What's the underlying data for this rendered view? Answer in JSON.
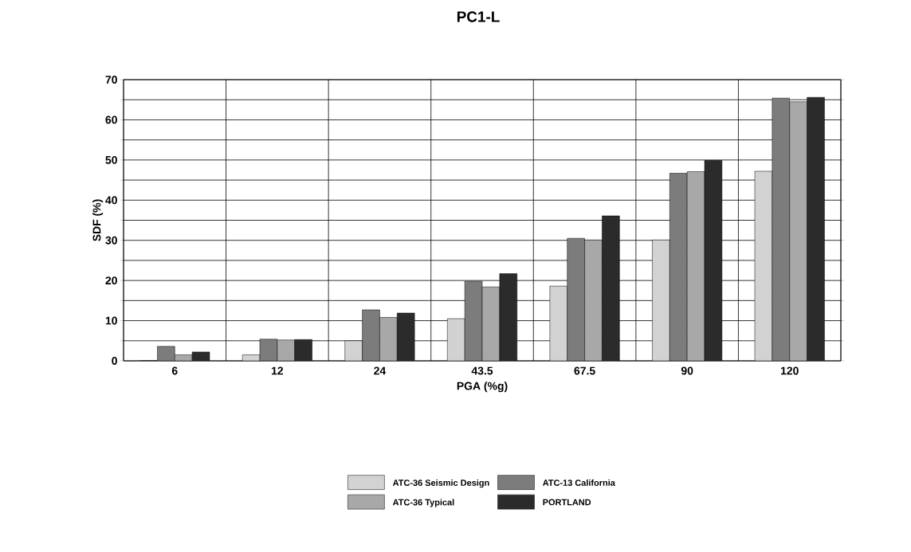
{
  "chart_data": {
    "type": "bar",
    "title": "PC1-L",
    "xlabel": "PGA (%g)",
    "ylabel": "SDF (%)",
    "categories": [
      "6",
      "12",
      "24",
      "43.5",
      "67.5",
      "90",
      "120"
    ],
    "series": [
      {
        "name": "ATC-36 Seismic Design",
        "color": "#d2d2d2",
        "values": [
          0,
          1.5,
          5,
          10.5,
          18.6,
          30.1,
          47.2
        ]
      },
      {
        "name": "ATC-13 California",
        "color": "#7c7c7c",
        "values": [
          3.6,
          5.4,
          12.7,
          19.8,
          30.5,
          46.7,
          65.4
        ]
      },
      {
        "name": "ATC-36 Typical",
        "color": "#a8a8a8",
        "values": [
          1.5,
          5.2,
          10.8,
          18.4,
          30.1,
          47.1,
          64.5
        ]
      },
      {
        "name": "PORTLAND",
        "color": "#2b2b2b",
        "values": [
          2.2,
          5.3,
          11.9,
          21.7,
          36.1,
          49.9,
          65.6
        ]
      }
    ],
    "ylim": [
      0,
      70
    ],
    "yticks": [
      0,
      {
        "value": 5,
        "label": null
      },
      10,
      {
        "value": 15,
        "label": null
      },
      20,
      {
        "value": 25,
        "label": null
      },
      30,
      {
        "value": 35,
        "label": null
      },
      40,
      {
        "value": 45,
        "label": null
      },
      50,
      {
        "value": 55,
        "label": null
      },
      60,
      {
        "value": 65,
        "label": null
      },
      70
    ],
    "grid": true,
    "legend": "bottom"
  }
}
